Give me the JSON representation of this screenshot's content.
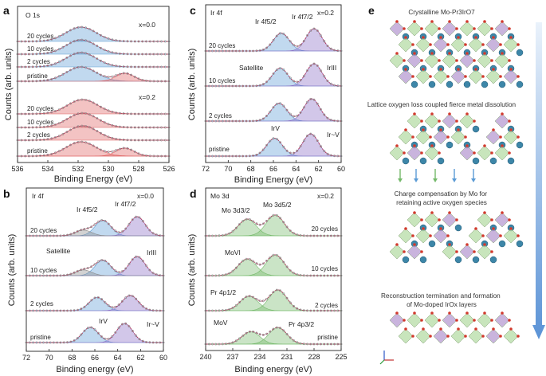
{
  "chart_data": [
    {
      "panel": "a",
      "type": "line",
      "title": "O 1s",
      "xlabel": "Binding Energy (eV)",
      "ylabel": "Counts (arb. units)",
      "xlim": [
        536,
        526
      ],
      "xticks": [
        "536",
        "534",
        "532",
        "530",
        "528",
        "526"
      ],
      "groups": [
        {
          "label": "x=0.0",
          "series": [
            {
              "name": "20 cycles",
              "peaks": [
                {
                  "center": 531.8,
                  "width": 1.0,
                  "height": 1.0
                }
              ]
            },
            {
              "name": "10 cycles",
              "peaks": [
                {
                  "center": 531.8,
                  "width": 1.0,
                  "height": 1.0
                }
              ]
            },
            {
              "name": "2 cycles",
              "peaks": [
                {
                  "center": 531.8,
                  "width": 1.0,
                  "height": 1.0
                }
              ]
            },
            {
              "name": "pristine",
              "peaks": [
                {
                  "center": 531.8,
                  "width": 1.0,
                  "height": 1.0
                },
                {
                  "center": 528.9,
                  "width": 0.6,
                  "height": 0.55
                }
              ]
            }
          ]
        },
        {
          "label": "x=0.2",
          "series": [
            {
              "name": "20 cycles",
              "peaks": [
                {
                  "center": 531.7,
                  "width": 1.0,
                  "height": 1.0
                }
              ]
            },
            {
              "name": "10 cycles",
              "peaks": [
                {
                  "center": 531.7,
                  "width": 1.0,
                  "height": 1.0
                }
              ]
            },
            {
              "name": "2 cycles",
              "peaks": [
                {
                  "center": 531.7,
                  "width": 1.0,
                  "height": 1.0
                }
              ]
            },
            {
              "name": "pristine",
              "peaks": [
                {
                  "center": 531.8,
                  "width": 1.0,
                  "height": 1.0
                },
                {
                  "center": 528.9,
                  "width": 0.6,
                  "height": 0.55
                }
              ]
            }
          ]
        }
      ]
    },
    {
      "panel": "b",
      "type": "line",
      "title": "Ir 4f",
      "condition": "x=0.0",
      "xlabel": "Binding energy (eV)",
      "ylabel": "Counts (arb. units)",
      "xlim": [
        72,
        60
      ],
      "xticks": [
        "72",
        "70",
        "68",
        "66",
        "64",
        "62",
        "60"
      ],
      "peak_labels": [
        "Ir 4f5/2",
        "Ir 4f7/2"
      ],
      "annotations": [
        "Satellite",
        "IrIII",
        "IrV",
        "Ir~V"
      ],
      "series": [
        {
          "name": "20 cycles",
          "peaks": [
            {
              "center": 65.3,
              "height": 0.8
            },
            {
              "center": 62.3,
              "height": 1.0
            },
            {
              "center": 67.0,
              "height": 0.3
            }
          ]
        },
        {
          "name": "10 cycles",
          "peaks": [
            {
              "center": 65.3,
              "height": 0.8
            },
            {
              "center": 62.3,
              "height": 1.0
            },
            {
              "center": 67.0,
              "height": 0.3
            }
          ]
        },
        {
          "name": "2 cycles",
          "peaks": [
            {
              "center": 65.8,
              "height": 0.7
            },
            {
              "center": 62.9,
              "height": 0.8
            }
          ]
        },
        {
          "name": "pristine",
          "peaks": [
            {
              "center": 66.4,
              "height": 0.8
            },
            {
              "center": 63.4,
              "height": 1.0
            }
          ]
        }
      ]
    },
    {
      "panel": "c",
      "type": "line",
      "title": "Ir 4f",
      "condition": "x=0.2",
      "xlabel": "Binding Energy (eV)",
      "ylabel": "Counts (arb. units)",
      "xlim": [
        72,
        60
      ],
      "xticks": [
        "72",
        "70",
        "68",
        "66",
        "64",
        "62",
        "60"
      ],
      "peak_labels": [
        "Ir 4f5/2",
        "Ir 4f7/2"
      ],
      "annotations": [
        "Satellite",
        "IrIII",
        "IrV",
        "Ir~V"
      ],
      "series": [
        {
          "name": "20 cycles",
          "peaks": [
            {
              "center": 65.3,
              "height": 0.8
            },
            {
              "center": 62.4,
              "height": 1.0
            }
          ]
        },
        {
          "name": "10 cycles",
          "peaks": [
            {
              "center": 65.4,
              "height": 0.8
            },
            {
              "center": 62.4,
              "height": 1.0
            }
          ]
        },
        {
          "name": "2 cycles",
          "peaks": [
            {
              "center": 65.5,
              "height": 0.8
            },
            {
              "center": 62.6,
              "height": 1.0
            }
          ]
        },
        {
          "name": "pristine",
          "peaks": [
            {
              "center": 65.9,
              "height": 0.8
            },
            {
              "center": 62.7,
              "height": 1.0
            }
          ]
        }
      ]
    },
    {
      "panel": "d",
      "type": "line",
      "title": "Mo 3d",
      "condition": "x=0.2",
      "xlabel": "Binding energy (eV)",
      "ylabel": "Counts (arb. units)",
      "xlim": [
        240,
        225
      ],
      "xticks": [
        "240",
        "237",
        "234",
        "231",
        "228",
        "225"
      ],
      "peak_labels": [
        "Mo 3d3/2",
        "Mo 3d5/2"
      ],
      "annotations": [
        "MoVI",
        "Pr 4p1/2",
        "MoV",
        "Pr 4p3/2"
      ],
      "series": [
        {
          "name": "20 cycles",
          "peaks": [
            {
              "center": 235.4,
              "height": 0.8
            },
            {
              "center": 232.3,
              "height": 1.0
            }
          ]
        },
        {
          "name": "10 cycles",
          "peaks": [
            {
              "center": 235.4,
              "height": 0.8
            },
            {
              "center": 232.3,
              "height": 1.0
            }
          ]
        },
        {
          "name": "2 cycles",
          "peaks": [
            {
              "center": 235.2,
              "height": 0.7
            },
            {
              "center": 232.0,
              "height": 1.0
            }
          ]
        },
        {
          "name": "pristine",
          "peaks": [
            {
              "center": 235.0,
              "height": 0.6
            },
            {
              "center": 232.0,
              "height": 0.8
            }
          ]
        }
      ]
    }
  ],
  "schematic": {
    "panel": "e",
    "captions": [
      "Crystalline Mo-Pr3IrO7",
      "Lattice oxygen loss coupled fierce metal dissolution",
      "Charge compensation by Mo for retaining active oxygen species",
      "Reconstruction termination and formation of Mo-doped IrOx layers"
    ]
  },
  "colors": {
    "data": "#8a8a8a",
    "fit": "#b03a5b",
    "blue": "#5b9bd5",
    "red": "#e06060",
    "purple": "#8a6bc4",
    "green": "#74b96a",
    "yellow": "#e8c85a"
  }
}
